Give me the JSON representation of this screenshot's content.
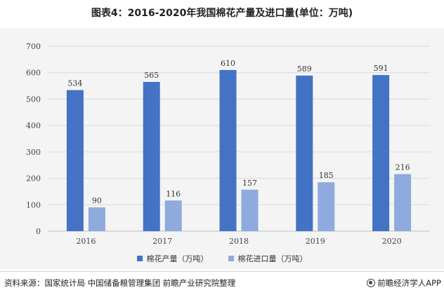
{
  "title": "图表4：2016-2020年我国棉花产量及进口量(单位：万吨)",
  "source": "资料来源：国家统计局 中国储备粮管理集团 前瞻产业研究院整理",
  "brand": "前瞻经济学人APP",
  "colors": {
    "production": "#4472c4",
    "imports": "#8faadc",
    "grid": "#d9d9d9",
    "background": "#f4f4f4"
  },
  "chart_data": {
    "type": "bar",
    "title": "图表4：2016-2020年我国棉花产量及进口量(单位：万吨)",
    "categories": [
      "2016",
      "2017",
      "2018",
      "2019",
      "2020"
    ],
    "series": [
      {
        "name": "棉花产量（万吨）",
        "values": [
          534,
          565,
          610,
          589,
          591
        ]
      },
      {
        "name": "棉花进口量（万吨）",
        "values": [
          90,
          116,
          157,
          185,
          216
        ]
      }
    ],
    "ylim": [
      0,
      700
    ],
    "yticks": [
      0,
      100,
      200,
      300,
      400,
      500,
      600,
      700
    ],
    "grid": true,
    "legend": "bottom"
  }
}
